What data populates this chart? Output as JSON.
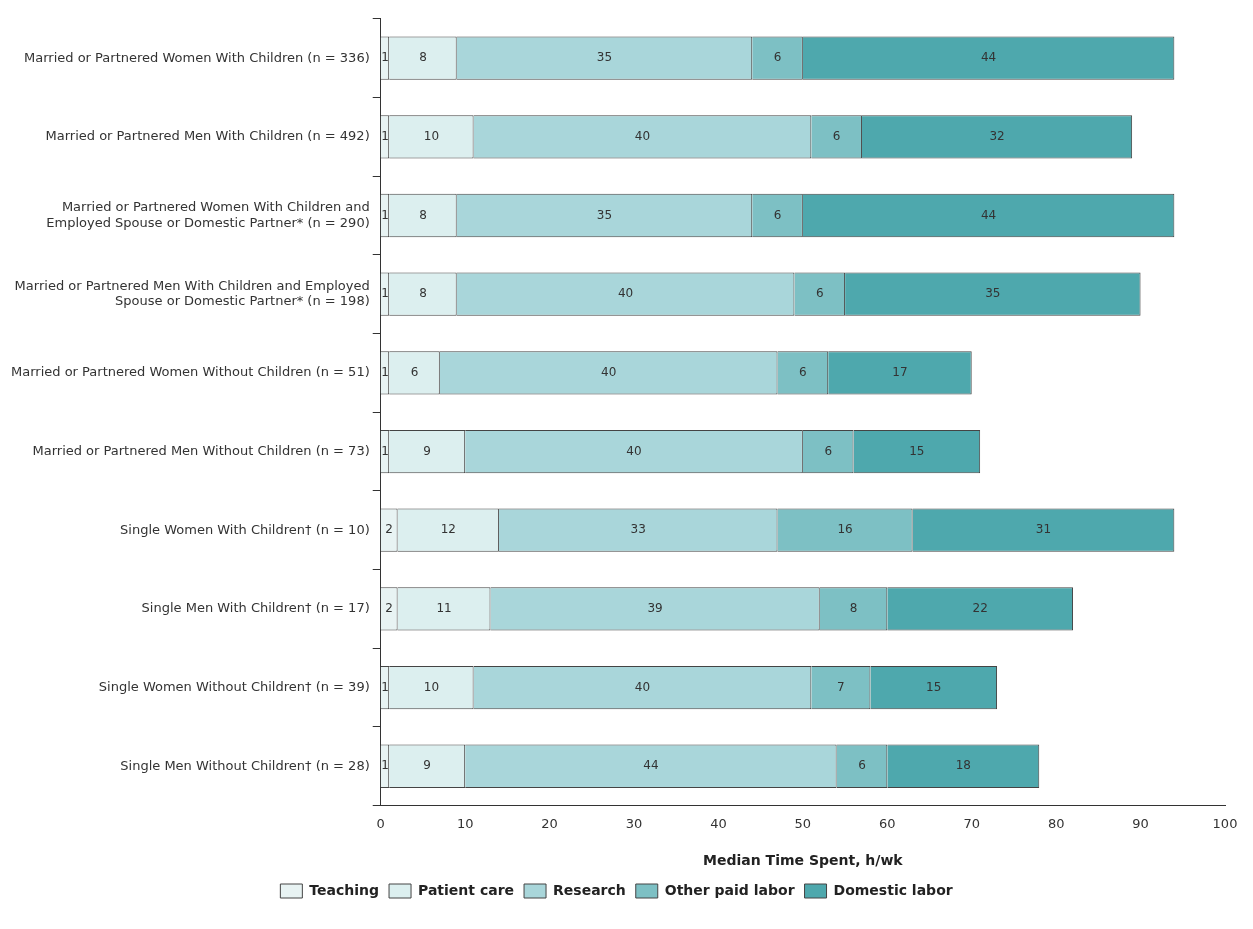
{
  "chart_data": {
    "type": "bar",
    "orientation": "horizontal",
    "stacked": true,
    "data_labels": true,
    "grid": false,
    "legend": "bottom",
    "xlabel": "Median Time Spent, h/wk",
    "xlim": [
      0,
      100
    ],
    "xticks": [
      0,
      10,
      20,
      30,
      40,
      50,
      60,
      70,
      80,
      90,
      100
    ],
    "categories": [
      "Married or Partnered Women With Children (n = 336)",
      "Married or Partnered Men With Children (n = 492)",
      "Married or Partnered Women With Children and Employed Spouse or Domestic Partner* (n = 290)",
      "Married or Partnered Men With Children and Employed Spouse or Domestic Partner* (n = 198)",
      "Married or Partnered Women Without Children (n = 51)",
      "Married or Partnered Men Without Children (n = 73)",
      "Single Women With Children† (n = 10)",
      "Single Men With Children† (n = 17)",
      "Single Women Without Children† (n = 39)",
      "Single Men Without Children† (n = 28)"
    ],
    "series": [
      {
        "name": "Teaching",
        "color": "#e8f3f3",
        "values": [
          1,
          1,
          1,
          1,
          1,
          1,
          2,
          2,
          1,
          1
        ]
      },
      {
        "name": "Patient care",
        "color": "#dcefef",
        "values": [
          8,
          10,
          8,
          8,
          6,
          9,
          12,
          11,
          10,
          9
        ]
      },
      {
        "name": "Research",
        "color": "#a9d6da",
        "values": [
          35,
          40,
          35,
          40,
          40,
          40,
          33,
          39,
          40,
          44
        ]
      },
      {
        "name": "Other paid labor",
        "color": "#7dc0c4",
        "values": [
          6,
          6,
          6,
          6,
          6,
          6,
          16,
          8,
          7,
          6
        ]
      },
      {
        "name": "Domestic labor",
        "color": "#4ea8ad",
        "values": [
          44,
          32,
          44,
          35,
          17,
          15,
          31,
          22,
          15,
          18
        ]
      }
    ]
  }
}
